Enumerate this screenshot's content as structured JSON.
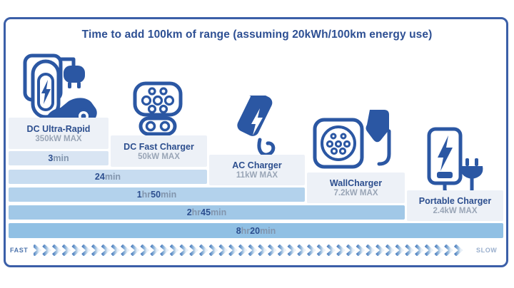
{
  "title": "Time to add 100km of range (assuming 20kWh/100km energy use)",
  "chargers": [
    {
      "name": "DC Ultra-Rapid",
      "power": "350kW MAX"
    },
    {
      "name": "DC Fast Charger",
      "power": "50kW MAX"
    },
    {
      "name": "AC Charger",
      "power": "11kW MAX"
    },
    {
      "name": "WallCharger",
      "power": "7.2kW MAX"
    },
    {
      "name": "Portable Charger",
      "power": "2.4kW MAX"
    }
  ],
  "bars": [
    {
      "seg": [
        "3",
        "min",
        "",
        ""
      ]
    },
    {
      "seg": [
        "24",
        "min",
        "",
        ""
      ]
    },
    {
      "seg": [
        "1",
        "hr ",
        "50",
        "min"
      ]
    },
    {
      "seg": [
        "2",
        "hr ",
        "45",
        "min"
      ]
    },
    {
      "seg": [
        "8",
        "hr ",
        "20",
        "min"
      ]
    }
  ],
  "footer": {
    "fast": "FAST",
    "slow": "SLOW",
    "chevron_count": 44
  },
  "colors": {
    "border": "#3b5fa8",
    "title_text": "#2d4f93",
    "icon_blue": "#2b57a3",
    "label_box_bg": "#edf1f7",
    "bar_colors": [
      "#d9e5f3",
      "#c7dcf0",
      "#b3d2ec",
      "#a1c8e7",
      "#90c0e4"
    ],
    "chevron_start": "#4e80c0",
    "chevron_end": "#e9f0f8"
  },
  "chart_data": {
    "type": "bar",
    "orientation": "horizontal",
    "title": "Time to add 100km of range (assuming 20kWh/100km energy use)",
    "categories": [
      "DC Ultra-Rapid",
      "DC Fast Charger",
      "AC Charger",
      "WallCharger",
      "Portable Charger"
    ],
    "category_sublabels": [
      "350kW MAX",
      "50kW MAX",
      "11kW MAX",
      "7.2kW MAX",
      "2.4kW MAX"
    ],
    "values_minutes": [
      3,
      24,
      110,
      165,
      500
    ],
    "value_labels": [
      "3min",
      "24min",
      "1hr 50min",
      "2hr 45min",
      "8hr 20min"
    ],
    "axis_annotations": {
      "left": "FAST",
      "right": "SLOW"
    },
    "legend": "none",
    "grid": false
  }
}
